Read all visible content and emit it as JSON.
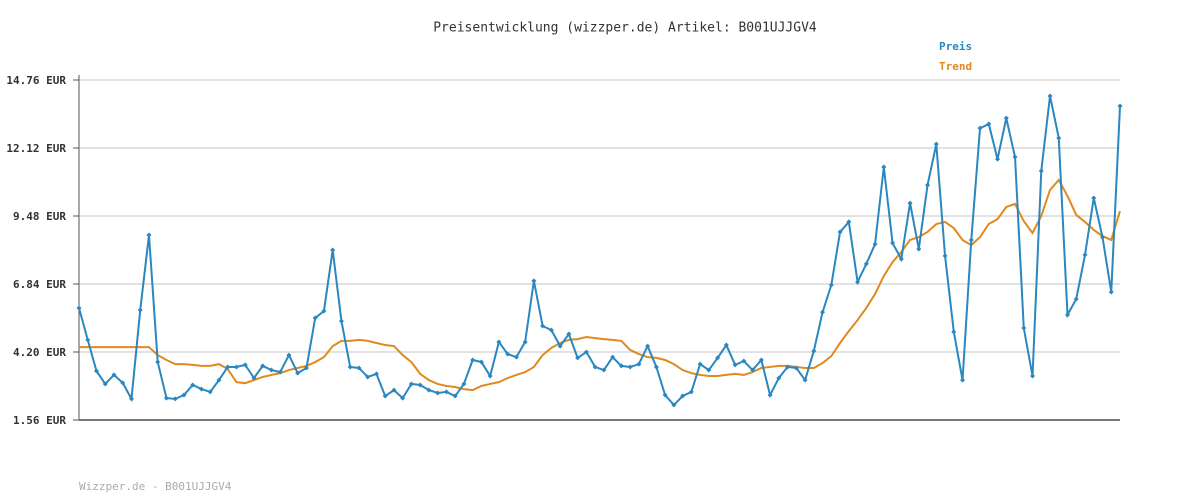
{
  "chart_data": {
    "type": "line",
    "title": "Preisentwicklung (wizzper.de) Artikel: B001UJJGV4",
    "footer": "Wizzper.de - B001UJJGV4",
    "ylim": [
      1.56,
      14.76
    ],
    "yticks": [
      {
        "value": 1.56,
        "label": "1.56 EUR"
      },
      {
        "value": 4.2,
        "label": "4.20 EUR"
      },
      {
        "value": 6.84,
        "label": "6.84 EUR"
      },
      {
        "value": 9.48,
        "label": "9.48 EUR"
      },
      {
        "value": 12.12,
        "label": "12.12 EUR"
      },
      {
        "value": 14.76,
        "label": "14.76 EUR"
      }
    ],
    "grid": true,
    "legend": "top-right",
    "series": [
      {
        "name": "Preis",
        "color": "#2a87c0",
        "markers": true,
        "values": [
          5.91,
          4.67,
          3.46,
          2.96,
          3.31,
          3.0,
          2.38,
          5.83,
          8.74,
          3.81,
          2.41,
          2.38,
          2.53,
          2.92,
          2.76,
          2.65,
          3.11,
          3.62,
          3.62,
          3.7,
          3.19,
          3.66,
          3.5,
          3.42,
          4.08,
          3.38,
          3.58,
          5.52,
          5.79,
          8.16,
          5.4,
          3.62,
          3.58,
          3.23,
          3.35,
          2.49,
          2.72,
          2.41,
          2.96,
          2.92,
          2.72,
          2.61,
          2.65,
          2.49,
          2.96,
          3.89,
          3.81,
          3.27,
          4.59,
          4.12,
          4.0,
          4.59,
          6.96,
          5.21,
          5.05,
          4.43,
          4.9,
          3.97,
          4.2,
          3.62,
          3.5,
          4.0,
          3.66,
          3.62,
          3.73,
          4.43,
          3.62,
          2.53,
          2.14,
          2.49,
          2.65,
          3.73,
          3.5,
          3.97,
          4.47,
          3.7,
          3.85,
          3.5,
          3.89,
          2.53,
          3.19,
          3.62,
          3.58,
          3.11,
          4.24,
          5.75,
          6.8,
          8.86,
          9.25,
          6.92,
          7.62,
          8.39,
          11.38,
          8.43,
          7.81,
          9.98,
          8.2,
          10.68,
          12.27,
          7.93,
          4.98,
          3.11,
          8.55,
          12.89,
          13.05,
          11.69,
          13.28,
          11.77,
          5.13,
          3.27,
          11.23,
          14.14,
          12.51,
          5.64,
          6.26,
          7.97,
          10.18,
          8.66,
          6.53,
          13.75
        ]
      },
      {
        "name": "Trend",
        "color": "#e08a1e",
        "markers": false,
        "values": [
          4.39,
          4.39,
          4.39,
          4.39,
          4.39,
          4.39,
          4.39,
          4.39,
          4.39,
          4.08,
          3.89,
          3.73,
          3.73,
          3.7,
          3.66,
          3.66,
          3.73,
          3.54,
          3.03,
          2.99,
          3.11,
          3.23,
          3.31,
          3.38,
          3.5,
          3.58,
          3.66,
          3.81,
          4.0,
          4.43,
          4.63,
          4.63,
          4.67,
          4.63,
          4.55,
          4.47,
          4.43,
          4.08,
          3.81,
          3.35,
          3.11,
          2.96,
          2.88,
          2.84,
          2.76,
          2.72,
          2.88,
          2.96,
          3.03,
          3.19,
          3.31,
          3.42,
          3.62,
          4.08,
          4.36,
          4.55,
          4.67,
          4.7,
          4.78,
          4.74,
          4.7,
          4.67,
          4.63,
          4.28,
          4.12,
          4.0,
          3.97,
          3.89,
          3.73,
          3.5,
          3.38,
          3.31,
          3.27,
          3.27,
          3.31,
          3.35,
          3.31,
          3.42,
          3.58,
          3.62,
          3.66,
          3.66,
          3.62,
          3.58,
          3.58,
          3.77,
          4.04,
          4.55,
          5.01,
          5.44,
          5.91,
          6.45,
          7.15,
          7.69,
          8.08,
          8.55,
          8.66,
          8.86,
          9.17,
          9.25,
          9.01,
          8.55,
          8.35,
          8.66,
          9.17,
          9.36,
          9.83,
          9.95,
          9.28,
          8.82,
          9.48,
          10.49,
          10.88,
          10.26,
          9.52,
          9.25,
          8.94,
          8.7,
          8.55,
          9.67
        ]
      }
    ]
  }
}
